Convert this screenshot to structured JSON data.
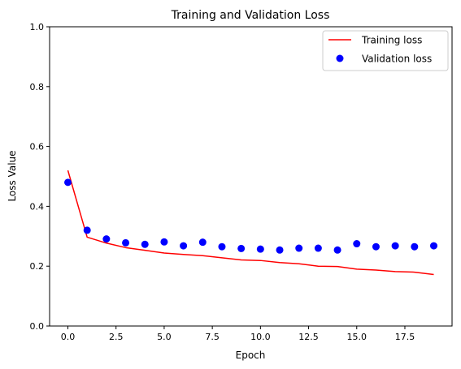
{
  "chart_data": {
    "type": "line",
    "title": "Training and Validation Loss",
    "xlabel": "Epoch",
    "ylabel": "Loss Value",
    "xlim": [
      -0.95,
      19.95
    ],
    "ylim": [
      0.0,
      1.0
    ],
    "xticks": [
      0.0,
      2.5,
      5.0,
      7.5,
      10.0,
      12.5,
      15.0,
      17.5
    ],
    "xtick_labels": [
      "0.0",
      "2.5",
      "5.0",
      "7.5",
      "10.0",
      "12.5",
      "15.0",
      "17.5"
    ],
    "yticks": [
      0.0,
      0.2,
      0.4,
      0.6,
      0.8,
      1.0
    ],
    "ytick_labels": [
      "0.0",
      "0.2",
      "0.4",
      "0.6",
      "0.8",
      "1.0"
    ],
    "grid": false,
    "legend_position": "top-right",
    "x": [
      0,
      1,
      2,
      3,
      4,
      5,
      6,
      7,
      8,
      9,
      10,
      11,
      12,
      13,
      14,
      15,
      16,
      17,
      18,
      19
    ],
    "series": [
      {
        "name": "Training loss",
        "style": "line",
        "color": "#ff0000",
        "values": [
          0.52,
          0.297,
          0.277,
          0.262,
          0.253,
          0.244,
          0.239,
          0.235,
          0.228,
          0.221,
          0.219,
          0.212,
          0.208,
          0.2,
          0.199,
          0.19,
          0.187,
          0.182,
          0.18,
          0.172
        ]
      },
      {
        "name": "Validation loss",
        "style": "markers",
        "color": "#0000ff",
        "values": [
          0.48,
          0.32,
          0.291,
          0.278,
          0.273,
          0.281,
          0.268,
          0.28,
          0.265,
          0.259,
          0.257,
          0.254,
          0.26,
          0.26,
          0.254,
          0.275,
          0.265,
          0.268,
          0.265,
          0.268
        ]
      }
    ]
  }
}
